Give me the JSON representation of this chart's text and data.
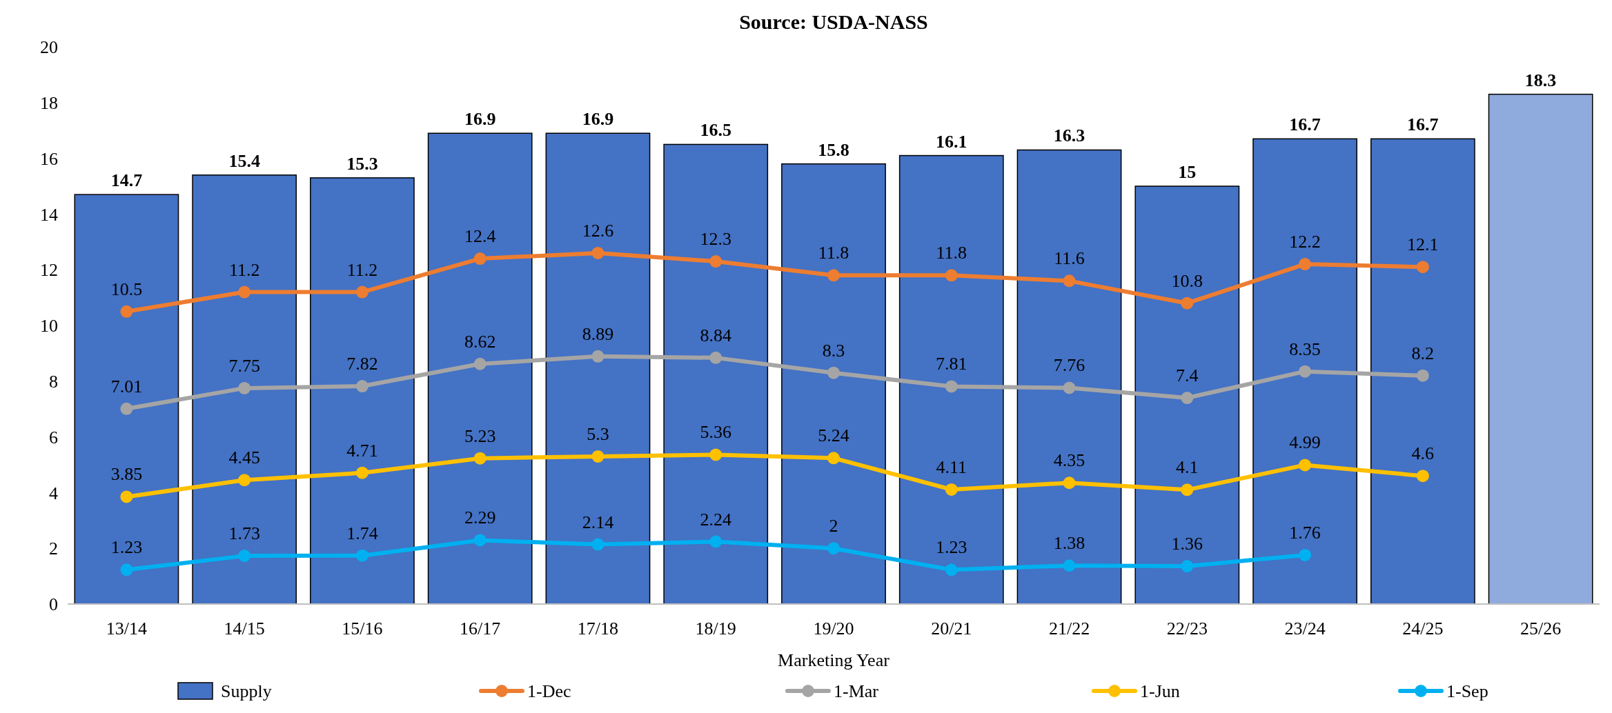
{
  "chart_data": {
    "type": "bar",
    "title": "Source: USDA-NASS",
    "xlabel": "Marketing Year",
    "categories": [
      "13/14",
      "14/15",
      "15/16",
      "16/17",
      "17/18",
      "18/19",
      "19/20",
      "20/21",
      "21/22",
      "22/23",
      "23/24",
      "24/25",
      "25/26"
    ],
    "series": [
      {
        "name": "Supply",
        "color": "#4472c4",
        "colors": [
          "#4472c4",
          "#4472c4",
          "#4472c4",
          "#4472c4",
          "#4472c4",
          "#4472c4",
          "#4472c4",
          "#4472c4",
          "#4472c4",
          "#4472c4",
          "#4472c4",
          "#4472c4",
          "#8faadc"
        ],
        "values": [
          14.7,
          15.4,
          15.3,
          16.9,
          16.9,
          16.5,
          15.8,
          16.1,
          16.3,
          15,
          16.7,
          16.7,
          18.3
        ]
      },
      {
        "name": "1-Dec",
        "type": "line",
        "color": "#ed7d31",
        "values": [
          10.5,
          11.2,
          11.2,
          12.4,
          12.6,
          12.3,
          11.8,
          11.8,
          11.6,
          10.8,
          12.2,
          12.1,
          null
        ]
      },
      {
        "name": "1-Mar",
        "type": "line",
        "color": "#a5a5a5",
        "values": [
          7.01,
          7.75,
          7.82,
          8.62,
          8.89,
          8.84,
          8.3,
          7.81,
          7.76,
          7.4,
          8.35,
          8.2,
          null
        ]
      },
      {
        "name": "1-Jun",
        "type": "line",
        "color": "#ffc000",
        "values": [
          3.85,
          4.45,
          4.71,
          5.23,
          5.3,
          5.36,
          5.24,
          4.11,
          4.35,
          4.1,
          4.99,
          4.6,
          null
        ]
      },
      {
        "name": "1-Sep",
        "type": "line",
        "color": "#00b0f0",
        "values": [
          1.23,
          1.73,
          1.74,
          2.29,
          2.14,
          2.24,
          2,
          1.23,
          1.38,
          1.36,
          1.76,
          null,
          null
        ]
      }
    ],
    "ylim": [
      0,
      20
    ],
    "yticks": [
      0,
      2,
      4,
      6,
      8,
      10,
      12,
      14,
      16,
      18,
      20
    ],
    "grid": false,
    "legend": "bottom",
    "marker": "circle",
    "data_labels": true
  }
}
